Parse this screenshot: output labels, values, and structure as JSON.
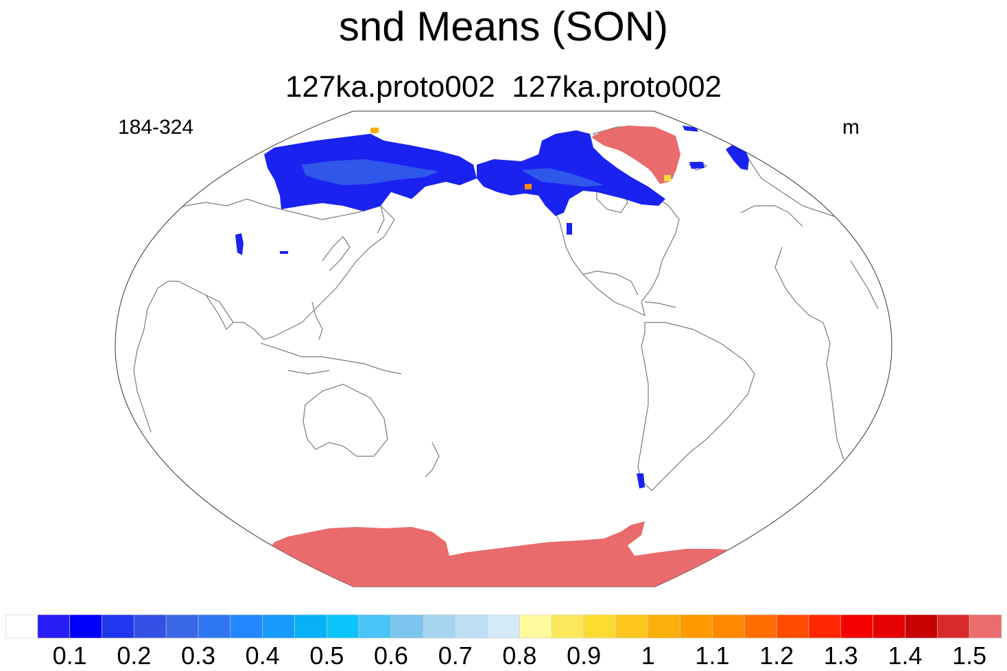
{
  "title": "snd Means (SON)",
  "subtitle": "127ka.proto002  127ka.proto002",
  "left_label": "184-324",
  "right_label": "m",
  "colorbar": {
    "colors": [
      "#ffffff",
      "#2a1ef6",
      "#0000ff",
      "#1f35ee",
      "#3250e5",
      "#3a68e6",
      "#2f78f2",
      "#2288ff",
      "#179bfa",
      "#08b0f8",
      "#0ec5fb",
      "#48c4f6",
      "#7cc6ef",
      "#a4d4f0",
      "#bcdff4",
      "#d4eaf8",
      "#fffa9c",
      "#fde75a",
      "#fedb30",
      "#fcc61d",
      "#fbb00b",
      "#ff9a00",
      "#ff8800",
      "#ff6d00",
      "#ff4b00",
      "#ff2600",
      "#f40000",
      "#e40000",
      "#c90000",
      "#d82a2a",
      "#ea6c6c"
    ],
    "tick_labels": [
      "0.1",
      "0.2",
      "0.3",
      "0.4",
      "0.5",
      "0.6",
      "0.7",
      "0.8",
      "0.9",
      "1",
      "1.1",
      "1.2",
      "1.3",
      "1.4",
      "1.5"
    ]
  },
  "map": {
    "projection": "Robinson (Pacific-centered)",
    "colors": {
      "outline": "#333333",
      "coast": "#7a7a7a",
      "deep_snow": "#e96b6b",
      "shallow_snow": "#1a22f0",
      "mid_snow": "#2f58ea"
    }
  }
}
